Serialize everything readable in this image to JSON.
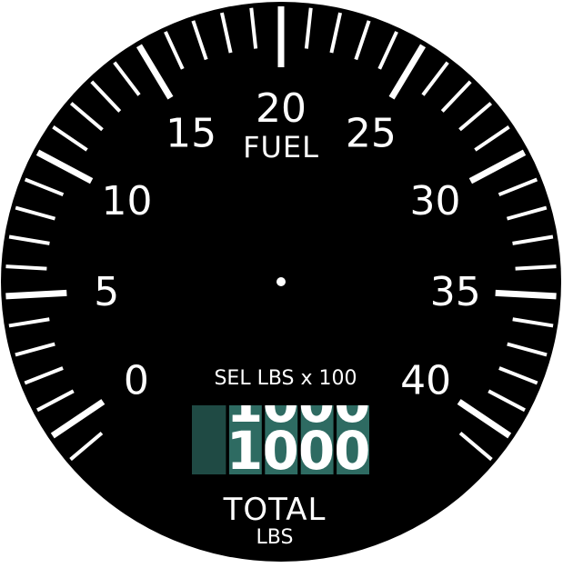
{
  "gauge": {
    "title": "FUEL",
    "min": 0,
    "max": 40,
    "major_labels": [
      "0",
      "5",
      "10",
      "15",
      "20",
      "25",
      "30",
      "35",
      "40"
    ],
    "counter_caption": "SEL LBS x 100",
    "counter_digits": [
      "",
      "1",
      "0",
      "0",
      "0"
    ],
    "total_label": "TOTAL",
    "units_label": "LBS",
    "colors": {
      "bezel": "#000000",
      "markings": "#ffffff",
      "counter_window": "#2e6b62",
      "counter_window_dark": "#1f4a44",
      "counter_digit": "#ffffff"
    }
  }
}
